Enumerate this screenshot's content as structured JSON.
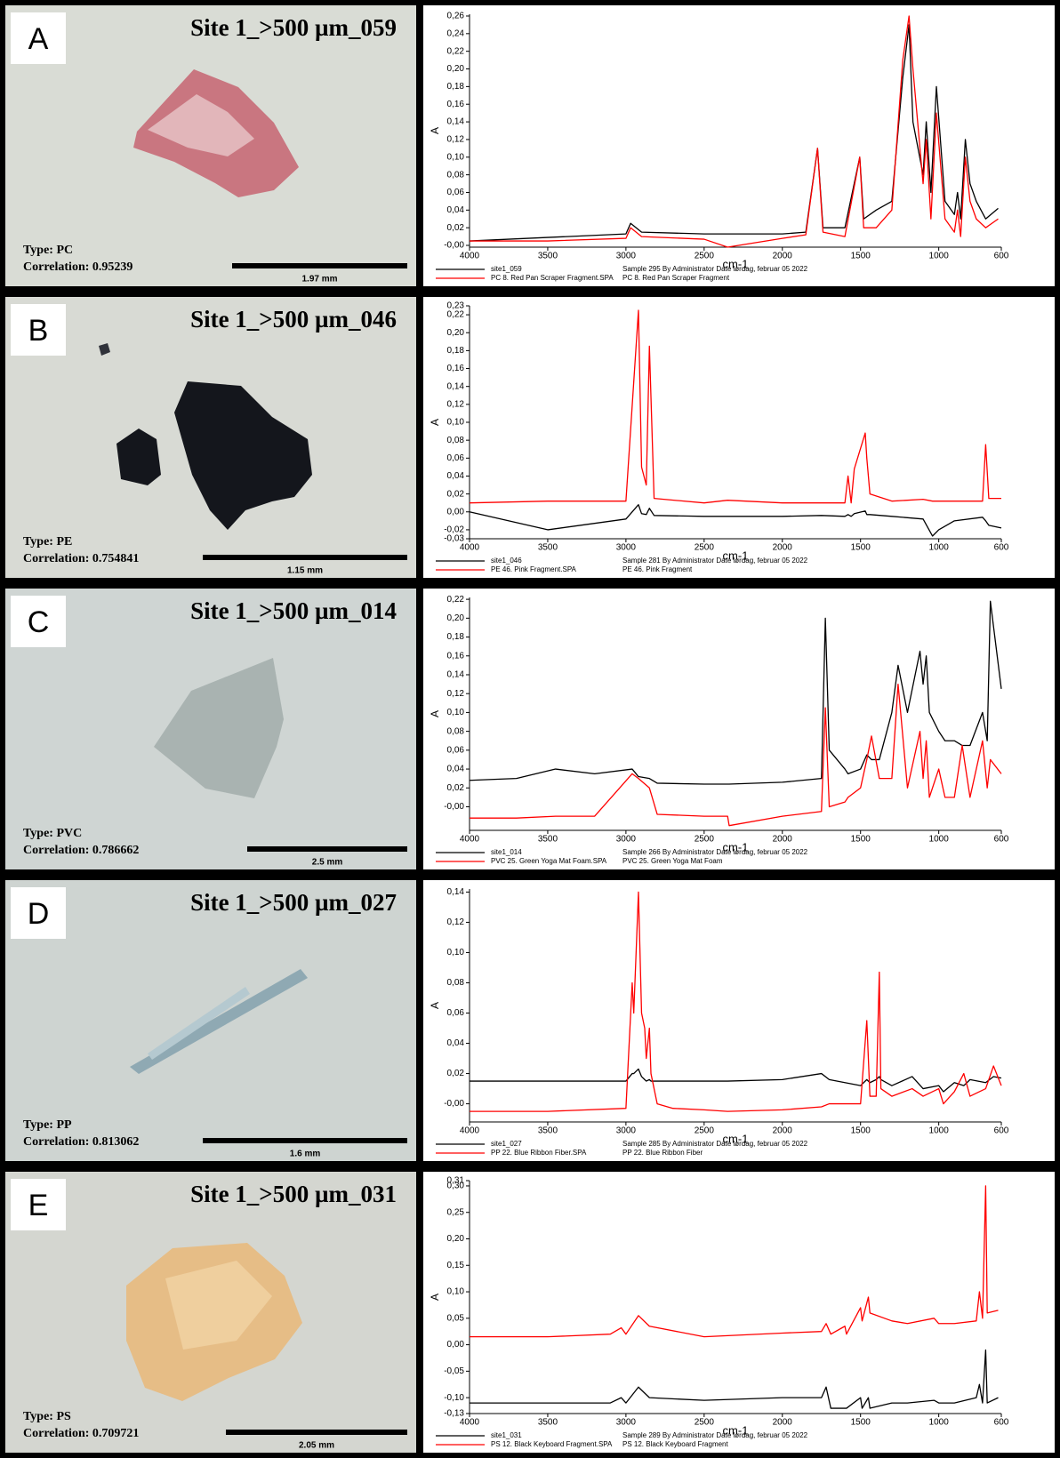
{
  "panels": [
    {
      "letter": "A",
      "title": "Site 1_>500 µm_059",
      "type_label": "Type: PC",
      "correlation_label": "Correlation: 0.95239",
      "scale_label": "1.97 mm"
    },
    {
      "letter": "B",
      "title": "Site 1_>500 µm_046",
      "type_label": "Type: PE",
      "correlation_label": "Correlation: 0.754841",
      "scale_label": "1.15 mm"
    },
    {
      "letter": "C",
      "title": "Site 1_>500 µm_014",
      "type_label": "Type: PVC",
      "correlation_label": "Correlation: 0.786662",
      "scale_label": "2.5 mm"
    },
    {
      "letter": "D",
      "title": "Site 1_>500 µm_027",
      "type_label": "Type: PP",
      "correlation_label": "Correlation: 0.813062",
      "scale_label": "1.6 mm"
    },
    {
      "letter": "E",
      "title": "Site 1_>500 µm_031",
      "type_label": "Type: PS",
      "correlation_label": "Correlation: 0.709721",
      "scale_label": "2.05 mm"
    }
  ],
  "chart_data": [
    {
      "type": "line",
      "x_label": "cm-1",
      "y_label": "A",
      "xlim": [
        4000,
        600
      ],
      "xticks": [
        4000,
        3500,
        3000,
        2500,
        2000,
        1500,
        1000,
        600
      ],
      "ylim": [
        -0.002,
        0.262
      ],
      "yticks": [
        {
          "value": 0,
          "label": "-0,00"
        },
        {
          "value": 0.02,
          "label": "0,02"
        },
        {
          "value": 0.04,
          "label": "0,04"
        },
        {
          "value": 0.06,
          "label": "0,06"
        },
        {
          "value": 0.08,
          "label": "0,08"
        },
        {
          "value": 0.1,
          "label": "0,10"
        },
        {
          "value": 0.12,
          "label": "0,12"
        },
        {
          "value": 0.14,
          "label": "0,14"
        },
        {
          "value": 0.16,
          "label": "0,16"
        },
        {
          "value": 0.18,
          "label": "0,18"
        },
        {
          "value": 0.2,
          "label": "0,20"
        },
        {
          "value": 0.22,
          "label": "0,22"
        },
        {
          "value": 0.24,
          "label": "0,24"
        },
        {
          "value": 0.26,
          "label": "0,26"
        }
      ],
      "x": [
        4000,
        3500,
        3000,
        2970,
        2900,
        2500,
        2350,
        2000,
        1850,
        1775,
        1740,
        1600,
        1505,
        1480,
        1400,
        1300,
        1230,
        1190,
        1165,
        1100,
        1080,
        1050,
        1015,
        960,
        900,
        880,
        860,
        830,
        800,
        760,
        700,
        620
      ],
      "series": [
        {
          "name": "site1_059",
          "description": "Sample 295 By Administrator Date lørdag, februar 05 2022",
          "color": "#000000",
          "values": [
            0.005,
            0.009,
            0.013,
            0.025,
            0.015,
            0.013,
            0.013,
            0.013,
            0.015,
            0.11,
            0.02,
            0.02,
            0.1,
            0.03,
            0.04,
            0.05,
            0.19,
            0.25,
            0.14,
            0.08,
            0.14,
            0.06,
            0.18,
            0.05,
            0.035,
            0.06,
            0.03,
            0.12,
            0.07,
            0.05,
            0.03,
            0.042
          ]
        },
        {
          "name": "PC 8. Red Pan Scraper Fragment.SPA",
          "description": "PC 8. Red Pan Scraper Fragment",
          "color": "#ff0000",
          "values": [
            0.005,
            0.005,
            0.008,
            0.02,
            0.01,
            0.007,
            -0.002,
            0.008,
            0.012,
            0.11,
            0.015,
            0.01,
            0.1,
            0.02,
            0.02,
            0.04,
            0.21,
            0.26,
            0.2,
            0.07,
            0.12,
            0.03,
            0.15,
            0.03,
            0.015,
            0.04,
            0.01,
            0.1,
            0.05,
            0.03,
            0.02,
            0.03
          ]
        }
      ]
    },
    {
      "type": "line",
      "x_label": "cm-1",
      "y_label": "A",
      "xlim": [
        4000,
        600
      ],
      "xticks": [
        4000,
        3500,
        3000,
        2500,
        2000,
        1500,
        1000,
        600
      ],
      "ylim": [
        -0.03,
        0.23
      ],
      "yticks": [
        {
          "value": -0.03,
          "label": "-0,03"
        },
        {
          "value": -0.02,
          "label": "-0,02"
        },
        {
          "value": 0,
          "label": "0,00"
        },
        {
          "value": 0.02,
          "label": "0,02"
        },
        {
          "value": 0.04,
          "label": "0,04"
        },
        {
          "value": 0.06,
          "label": "0,06"
        },
        {
          "value": 0.08,
          "label": "0,08"
        },
        {
          "value": 0.1,
          "label": "0,10"
        },
        {
          "value": 0.12,
          "label": "0,12"
        },
        {
          "value": 0.14,
          "label": "0,14"
        },
        {
          "value": 0.16,
          "label": "0,16"
        },
        {
          "value": 0.18,
          "label": "0,18"
        },
        {
          "value": 0.2,
          "label": "0,20"
        },
        {
          "value": 0.22,
          "label": "0,22"
        },
        {
          "value": 0.23,
          "label": "0,23"
        }
      ],
      "x": [
        4000,
        3500,
        3000,
        2920,
        2900,
        2870,
        2850,
        2820,
        2500,
        2350,
        2000,
        1750,
        1600,
        1580,
        1560,
        1540,
        1470,
        1460,
        1440,
        1300,
        1100,
        1040,
        1000,
        900,
        720,
        700,
        680,
        600
      ],
      "series": [
        {
          "name": "site1_046",
          "description": "Sample 281 By Administrator Date lørdag, februar 05 2022",
          "color": "#000000",
          "values": [
            0,
            -0.02,
            -0.008,
            0.008,
            -0.002,
            -0.003,
            0.004,
            -0.004,
            -0.005,
            -0.005,
            -0.005,
            -0.004,
            -0.005,
            -0.003,
            -0.005,
            -0.002,
            0.001,
            -0.003,
            -0.003,
            -0.005,
            -0.008,
            -0.027,
            -0.02,
            -0.01,
            -0.006,
            -0.01,
            -0.015,
            -0.018
          ]
        },
        {
          "name": "PE 46. Pink Fragment.SPA",
          "description": "PE 46. Pink Fragment",
          "color": "#ff0000",
          "values": [
            0.01,
            0.012,
            0.012,
            0.225,
            0.05,
            0.03,
            0.185,
            0.015,
            0.01,
            0.013,
            0.01,
            0.01,
            0.01,
            0.04,
            0.01,
            0.048,
            0.088,
            0.06,
            0.02,
            0.012,
            0.014,
            0.012,
            0.012,
            0.012,
            0.012,
            0.075,
            0.015,
            0.015
          ]
        }
      ]
    },
    {
      "type": "line",
      "x_label": "cm-1",
      "y_label": "A",
      "xlim": [
        4000,
        600
      ],
      "xticks": [
        4000,
        3500,
        3000,
        2500,
        2000,
        1500,
        1000,
        600
      ],
      "ylim": [
        -0.025,
        0.222
      ],
      "yticks": [
        {
          "value": 0,
          "label": "-0,00"
        },
        {
          "value": 0.02,
          "label": "0,02"
        },
        {
          "value": 0.04,
          "label": "0,04"
        },
        {
          "value": 0.06,
          "label": "0,06"
        },
        {
          "value": 0.08,
          "label": "0,08"
        },
        {
          "value": 0.1,
          "label": "0,10"
        },
        {
          "value": 0.12,
          "label": "0,12"
        },
        {
          "value": 0.14,
          "label": "0,14"
        },
        {
          "value": 0.16,
          "label": "0,16"
        },
        {
          "value": 0.18,
          "label": "0,18"
        },
        {
          "value": 0.2,
          "label": "0,20"
        },
        {
          "value": 0.22,
          "label": "0,22"
        }
      ],
      "x": [
        4000,
        3700,
        3450,
        3200,
        2960,
        2920,
        2850,
        2800,
        2500,
        2350,
        2340,
        2000,
        1750,
        1725,
        1700,
        1600,
        1580,
        1500,
        1460,
        1430,
        1380,
        1300,
        1260,
        1200,
        1120,
        1100,
        1080,
        1060,
        1000,
        960,
        900,
        850,
        800,
        720,
        690,
        670,
        600
      ],
      "series": [
        {
          "name": "site1_014",
          "description": "Sample 266 By Administrator Date lørdag, februar 05 2022",
          "color": "#000000",
          "values": [
            0.028,
            0.03,
            0.04,
            0.035,
            0.04,
            0.032,
            0.03,
            0.025,
            0.024,
            0.024,
            0.024,
            0.026,
            0.03,
            0.2,
            0.06,
            0.04,
            0.035,
            0.04,
            0.055,
            0.05,
            0.05,
            0.1,
            0.15,
            0.1,
            0.165,
            0.13,
            0.16,
            0.1,
            0.08,
            0.07,
            0.07,
            0.065,
            0.065,
            0.1,
            0.07,
            0.218,
            0.125
          ]
        },
        {
          "name": "PVC 25. Green Yoga Mat Foam.SPA",
          "description": "PVC 25. Green Yoga Mat Foam",
          "color": "#ff0000",
          "values": [
            -0.012,
            -0.012,
            -0.01,
            -0.01,
            0.035,
            0.03,
            0.02,
            -0.008,
            -0.01,
            -0.01,
            -0.02,
            -0.01,
            -0.005,
            0.105,
            0,
            0.005,
            0.01,
            0.02,
            0.05,
            0.075,
            0.03,
            0.03,
            0.13,
            0.02,
            0.08,
            0.03,
            0.07,
            0.01,
            0.04,
            0.01,
            0.01,
            0.065,
            0.01,
            0.07,
            0.02,
            0.05,
            0.035
          ]
        }
      ]
    },
    {
      "type": "line",
      "x_label": "cm-1",
      "y_label": "A",
      "xlim": [
        4000,
        600
      ],
      "xticks": [
        4000,
        3500,
        3000,
        2500,
        2000,
        1500,
        1000,
        600
      ],
      "ylim": [
        -0.012,
        0.142
      ],
      "yticks": [
        {
          "value": 0,
          "label": "-0,00"
        },
        {
          "value": 0.02,
          "label": "0,02"
        },
        {
          "value": 0.04,
          "label": "0,04"
        },
        {
          "value": 0.06,
          "label": "0,06"
        },
        {
          "value": 0.08,
          "label": "0,08"
        },
        {
          "value": 0.1,
          "label": "0,10"
        },
        {
          "value": 0.12,
          "label": "0,12"
        },
        {
          "value": 0.14,
          "label": "0,14"
        }
      ],
      "x": [
        4000,
        3500,
        3000,
        2960,
        2950,
        2920,
        2900,
        2880,
        2870,
        2850,
        2840,
        2800,
        2700,
        2500,
        2350,
        2000,
        1750,
        1700,
        1500,
        1460,
        1440,
        1400,
        1380,
        1370,
        1300,
        1170,
        1100,
        1000,
        970,
        900,
        840,
        800,
        700,
        650,
        600
      ],
      "series": [
        {
          "name": "site1_027",
          "description": "Sample 285 By Administrator Date lørdag, februar 05 2022",
          "color": "#000000",
          "values": [
            0.015,
            0.015,
            0.015,
            0.02,
            0.02,
            0.023,
            0.018,
            0.016,
            0.015,
            0.016,
            0.015,
            0.015,
            0.015,
            0.015,
            0.015,
            0.016,
            0.02,
            0.016,
            0.012,
            0.016,
            0.014,
            0.016,
            0.018,
            0.016,
            0.012,
            0.018,
            0.01,
            0.012,
            0.008,
            0.014,
            0.012,
            0.016,
            0.014,
            0.018,
            0.017
          ]
        },
        {
          "name": "PP 22. Blue Ribbon Fiber.SPA",
          "description": "PP 22. Blue Ribbon Fiber",
          "color": "#ff0000",
          "values": [
            -0.005,
            -0.005,
            -0.003,
            0.08,
            0.06,
            0.14,
            0.06,
            0.05,
            0.03,
            0.05,
            0.02,
            0,
            -0.003,
            -0.004,
            -0.005,
            -0.004,
            -0.002,
            0,
            0,
            0.055,
            0.005,
            0.005,
            0.087,
            0.01,
            0.005,
            0.01,
            0.005,
            0.01,
            0,
            0.008,
            0.02,
            0.005,
            0.01,
            0.025,
            0.012
          ]
        }
      ]
    },
    {
      "type": "line",
      "x_label": "cm-1",
      "y_label": "A",
      "xlim": [
        4000,
        600
      ],
      "xticks": [
        4000,
        3500,
        3000,
        2500,
        2000,
        1500,
        1000,
        600
      ],
      "ylim": [
        -0.13,
        0.31
      ],
      "yticks": [
        {
          "value": -0.13,
          "label": "-0,13"
        },
        {
          "value": -0.1,
          "label": "-0,10"
        },
        {
          "value": -0.05,
          "label": "-0,05"
        },
        {
          "value": 0,
          "label": "0,00"
        },
        {
          "value": 0.05,
          "label": "0,05"
        },
        {
          "value": 0.1,
          "label": "0,10"
        },
        {
          "value": 0.15,
          "label": "0,15"
        },
        {
          "value": 0.2,
          "label": "0,20"
        },
        {
          "value": 0.25,
          "label": "0,25"
        },
        {
          "value": 0.3,
          "label": "0,30"
        },
        {
          "value": 0.31,
          "label": "0,31"
        }
      ],
      "x": [
        4000,
        3500,
        3100,
        3030,
        3000,
        2920,
        2850,
        2500,
        2000,
        1750,
        1720,
        1690,
        1600,
        1590,
        1500,
        1490,
        1450,
        1440,
        1300,
        1200,
        1030,
        1000,
        900,
        760,
        740,
        720,
        700,
        690,
        620
      ],
      "series": [
        {
          "name": "site1_031",
          "description": "Sample 289 By Administrator Date lørdag, februar 05 2022",
          "color": "#000000",
          "values": [
            -0.11,
            -0.11,
            -0.11,
            -0.1,
            -0.11,
            -0.08,
            -0.1,
            -0.105,
            -0.1,
            -0.1,
            -0.08,
            -0.12,
            -0.12,
            -0.12,
            -0.1,
            -0.12,
            -0.1,
            -0.12,
            -0.11,
            -0.11,
            -0.105,
            -0.11,
            -0.11,
            -0.1,
            -0.075,
            -0.11,
            -0.01,
            -0.11,
            -0.1
          ]
        },
        {
          "name": "PS 12. Black Keyboard Fragment.SPA",
          "description": "PS 12. Black Keyboard Fragment",
          "color": "#ff0000",
          "values": [
            0.015,
            0.015,
            0.02,
            0.032,
            0.02,
            0.055,
            0.035,
            0.015,
            0.022,
            0.025,
            0.04,
            0.02,
            0.035,
            0.02,
            0.07,
            0.045,
            0.09,
            0.06,
            0.045,
            0.04,
            0.05,
            0.04,
            0.04,
            0.045,
            0.1,
            0.05,
            0.3,
            0.06,
            0.065
          ]
        }
      ]
    }
  ]
}
